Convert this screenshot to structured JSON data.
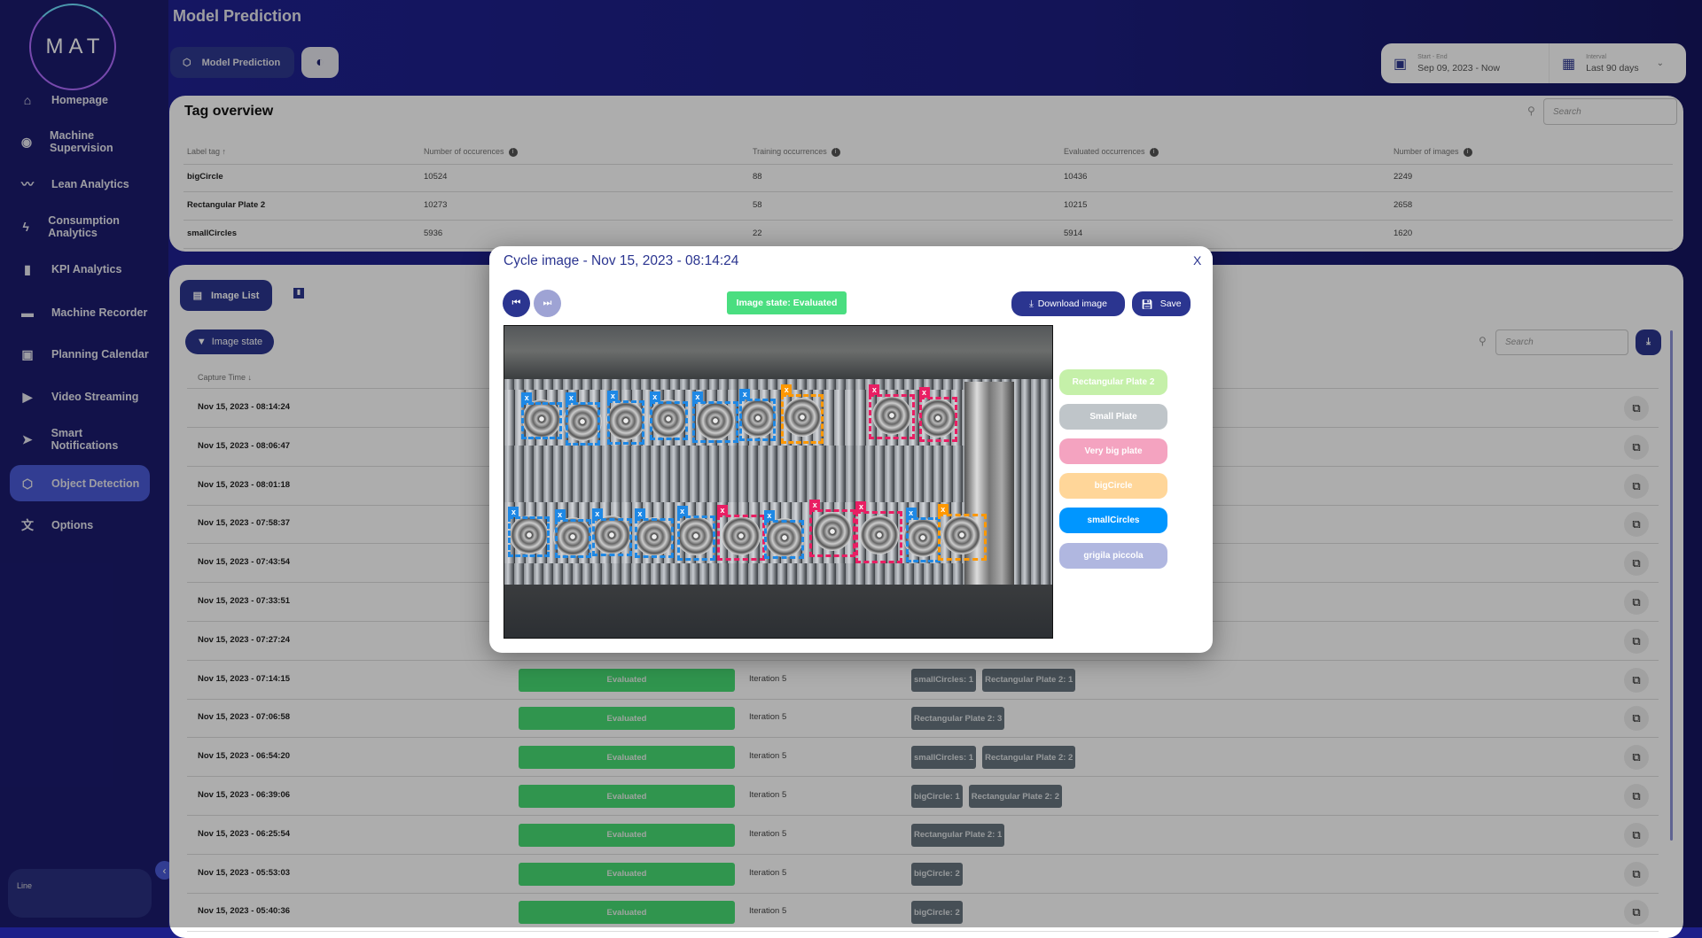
{
  "sidebar": {
    "logo": "MAT",
    "items": [
      {
        "label": "Homepage",
        "icon": "home-icon"
      },
      {
        "label": "Machine Supervision",
        "icon": "eye-icon"
      },
      {
        "label": "Lean Analytics",
        "icon": "trend-icon"
      },
      {
        "label": "Consumption Analytics",
        "icon": "bolt-icon"
      },
      {
        "label": "KPI Analytics",
        "icon": "bar-chart-icon"
      },
      {
        "label": "Machine Recorder",
        "icon": "recorder-icon"
      },
      {
        "label": "Planning Calendar",
        "icon": "calendar-icon"
      },
      {
        "label": "Video Streaming",
        "icon": "play-icon"
      },
      {
        "label": "Smart Notifications",
        "icon": "send-icon"
      },
      {
        "label": "Object Detection",
        "icon": "object-detection-icon",
        "active": true
      },
      {
        "label": "Options",
        "icon": "translate-icon"
      }
    ],
    "line_label": "Line"
  },
  "header": {
    "title": "Model Prediction",
    "model_prediction_button": "Model Prediction",
    "date_range": {
      "label": "Start - End",
      "value": "Sep 09, 2023 - Now"
    },
    "interval": {
      "label": "Interval",
      "value": "Last 90 days"
    }
  },
  "tag_overview": {
    "title": "Tag overview",
    "search_placeholder": "Search",
    "columns": [
      "Label tag",
      "Number of occurences",
      "Training occurrences",
      "Evaluated occurrences",
      "Number of images"
    ],
    "rows": [
      [
        "bigCircle",
        "10524",
        "88",
        "10436",
        "2249"
      ],
      [
        "Rectangular Plate 2",
        "10273",
        "58",
        "10215",
        "2658"
      ],
      [
        "smallCircles",
        "5936",
        "22",
        "5914",
        "1620"
      ]
    ]
  },
  "image_list": {
    "tab_label": "Image List",
    "filter_label": "Image state",
    "search_placeholder": "Search",
    "column_capture_time": "Capture Time",
    "rows": [
      {
        "time": "Nov 15, 2023 - 08:14:24"
      },
      {
        "time": "Nov 15, 2023 - 08:06:47"
      },
      {
        "time": "Nov 15, 2023 - 08:01:18"
      },
      {
        "time": "Nov 15, 2023 - 07:58:37"
      },
      {
        "time": "Nov 15, 2023 - 07:43:54"
      },
      {
        "time": "Nov 15, 2023 - 07:33:51"
      },
      {
        "time": "Nov 15, 2023 - 07:27:24"
      },
      {
        "time": "Nov 15, 2023 - 07:14:15",
        "state": "Evaluated",
        "iteration": "Iteration 5",
        "tags": [
          "smallCircles: 1",
          "Rectangular Plate 2: 1"
        ]
      },
      {
        "time": "Nov 15, 2023 - 07:06:58",
        "state": "Evaluated",
        "iteration": "Iteration 5",
        "tags": [
          "Rectangular Plate 2: 3"
        ]
      },
      {
        "time": "Nov 15, 2023 - 06:54:20",
        "state": "Evaluated",
        "iteration": "Iteration 5",
        "tags": [
          "smallCircles: 1",
          "Rectangular Plate 2: 2"
        ]
      },
      {
        "time": "Nov 15, 2023 - 06:39:06",
        "state": "Evaluated",
        "iteration": "Iteration 5",
        "tags": [
          "bigCircle: 1",
          "Rectangular Plate 2: 2"
        ]
      },
      {
        "time": "Nov 15, 2023 - 06:25:54",
        "state": "Evaluated",
        "iteration": "Iteration 5",
        "tags": [
          "Rectangular Plate 2: 1"
        ]
      },
      {
        "time": "Nov 15, 2023 - 05:53:03",
        "state": "Evaluated",
        "iteration": "Iteration 5",
        "tags": [
          "bigCircle: 2"
        ]
      },
      {
        "time": "Nov 15, 2023 - 05:40:36",
        "state": "Evaluated",
        "iteration": "Iteration 5",
        "tags": [
          "bigCircle: 2"
        ]
      }
    ]
  },
  "modal": {
    "title": "Cycle image - Nov 15, 2023 - 08:14:24",
    "close": "X",
    "image_state": "Image state:  Evaluated",
    "download_label": "Download image",
    "save_label": "Save",
    "labels": [
      {
        "name": "Rectangular Plate 2",
        "color": "#c5f0a9"
      },
      {
        "name": "Small Plate",
        "color": "#bfc5c9"
      },
      {
        "name": "Very big plate",
        "color": "#f4a3c0"
      },
      {
        "name": "bigCircle",
        "color": "#ffd699"
      },
      {
        "name": "smallCircles",
        "color": "#0096ff"
      },
      {
        "name": "grigila piccola",
        "color": "#b0b7e0"
      }
    ],
    "box_colors": {
      "smallCircles": "#1e88e5",
      "bigCircle": "#ff9800",
      "Very big plate": "#e91e63"
    }
  }
}
